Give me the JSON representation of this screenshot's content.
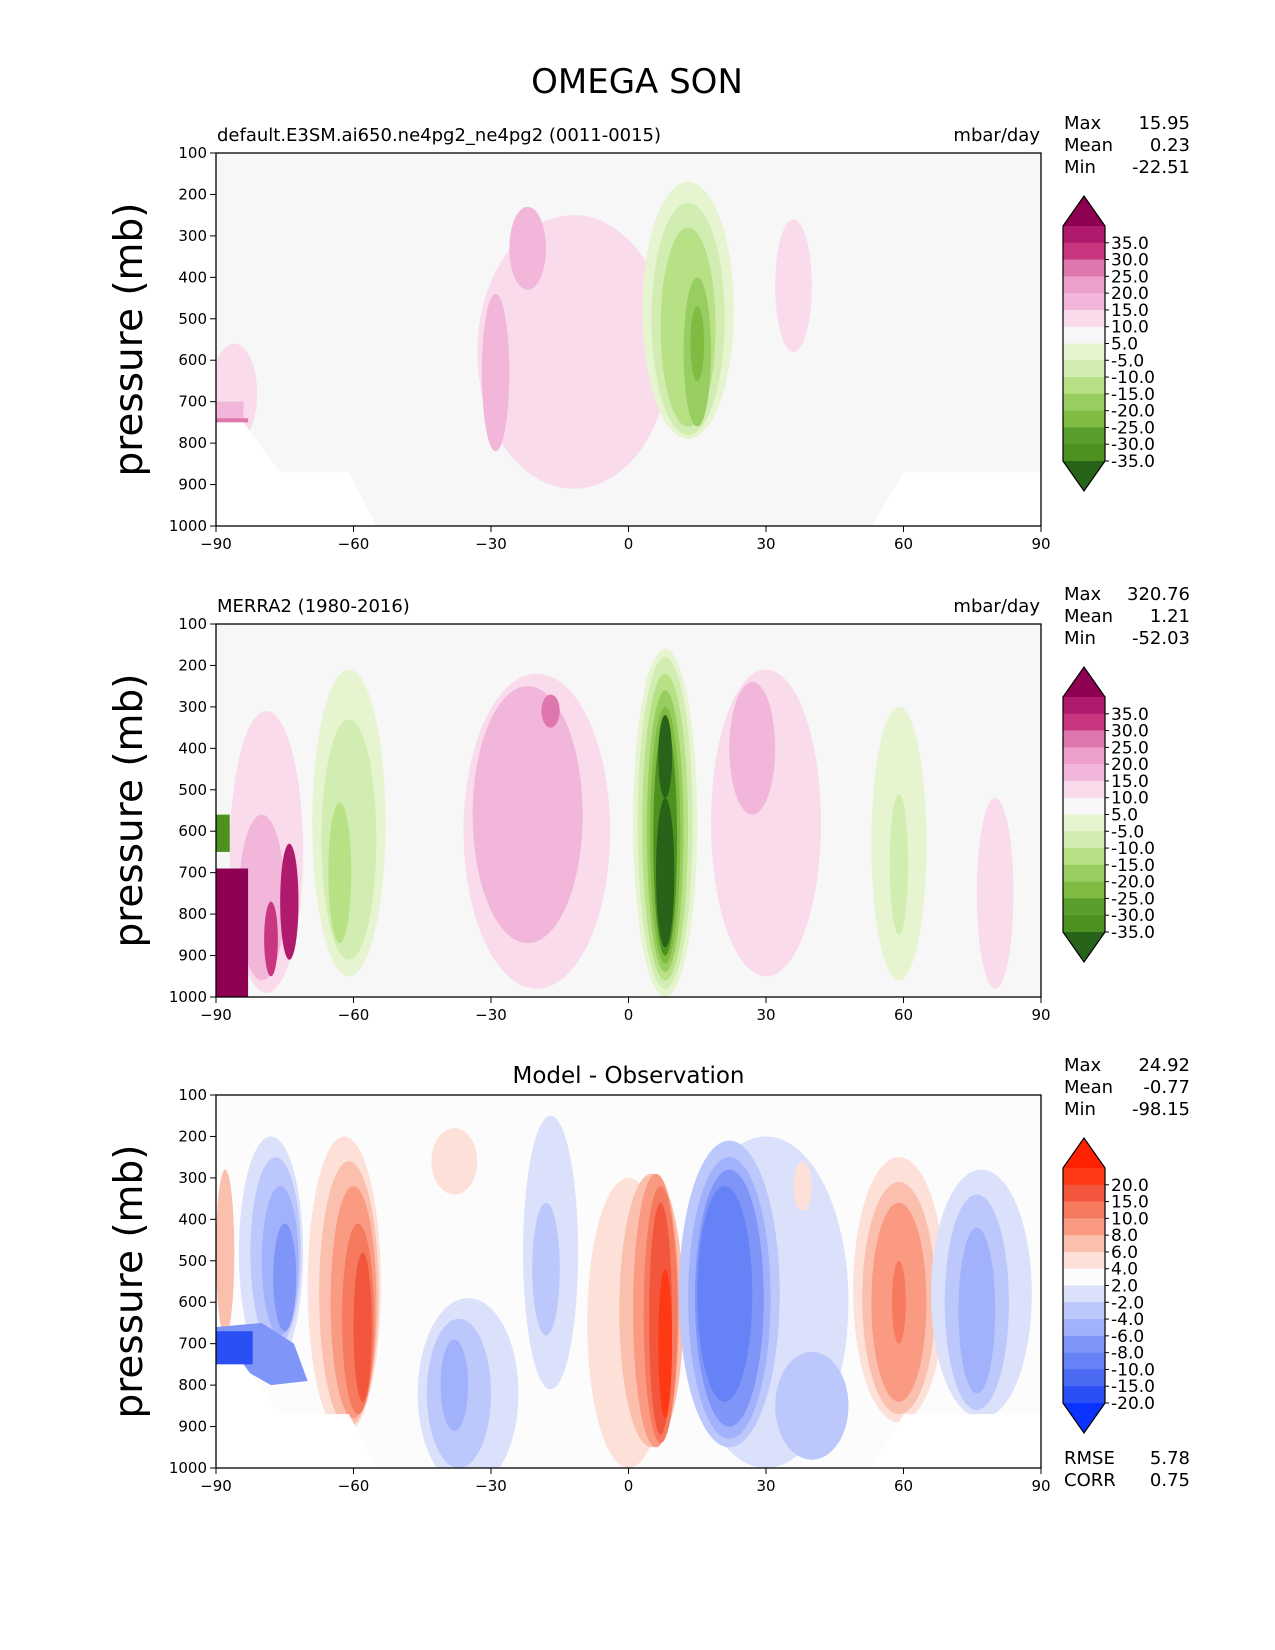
{
  "figure_title": "OMEGA SON",
  "chart_data": [
    {
      "type": "heatmap",
      "panel": "test",
      "title_left": "default.E3SM.ai650.ne4pg2_ne4pg2 (0011-0015)",
      "title_center": "",
      "units": "mbar/day",
      "xlabel": "",
      "ylabel": "pressure (mb)",
      "xlim": [
        -90,
        90
      ],
      "ylim": [
        1000,
        100
      ],
      "x_ticks": [
        "−90",
        "−60",
        "−30",
        "0",
        "30",
        "60",
        "90"
      ],
      "y_ticks": [
        "100",
        "200",
        "300",
        "400",
        "500",
        "600",
        "700",
        "800",
        "900",
        "1000"
      ],
      "stats": [
        {
          "label": "Max",
          "value": "15.95"
        },
        {
          "label": "Mean",
          "value": "0.23"
        },
        {
          "label": "Min",
          "value": "-22.51"
        }
      ],
      "colorbar": {
        "labels": [
          "35.0",
          "30.0",
          "25.0",
          "20.0",
          "15.0",
          "10.0",
          "5.0",
          "-5.0",
          "-10.0",
          "-15.0",
          "-20.0",
          "-25.0",
          "-30.0",
          "-35.0"
        ],
        "colors": [
          "#8e0152",
          "#b01a6c",
          "#c7367f",
          "#de77ae",
          "#ec9fc9",
          "#f1b6da",
          "#f9dbec",
          "#f7f7f7",
          "#e6f5d0",
          "#d2edb1",
          "#b8e186",
          "#98cd61",
          "#7fbc41",
          "#5a9e2e",
          "#4d9221",
          "#276419"
        ]
      },
      "regions": [
        {
          "kind": "blob",
          "lon": -12,
          "p": 580,
          "wlon": 21,
          "hp": 330,
          "color": "#f9dbec"
        },
        {
          "kind": "blob",
          "lon": -22,
          "p": 330,
          "wlon": 4,
          "hp": 100,
          "color": "#f1b6da"
        },
        {
          "kind": "blob",
          "lon": -29,
          "p": 630,
          "wlon": 3,
          "hp": 190,
          "color": "#f1b6da"
        },
        {
          "kind": "blob",
          "lon": 13,
          "p": 480,
          "wlon": 10,
          "hp": 310,
          "color": "#e6f5d0"
        },
        {
          "kind": "blob",
          "lon": 13,
          "p": 500,
          "wlon": 8,
          "hp": 280,
          "color": "#d2edb1"
        },
        {
          "kind": "blob",
          "lon": 13,
          "p": 520,
          "wlon": 6,
          "hp": 240,
          "color": "#b8e186"
        },
        {
          "kind": "blob",
          "lon": 15,
          "p": 580,
          "wlon": 3,
          "hp": 180,
          "color": "#98cd61"
        },
        {
          "kind": "blob",
          "lon": 15,
          "p": 560,
          "wlon": 1.5,
          "hp": 90,
          "color": "#7fbc41"
        },
        {
          "kind": "blob",
          "lon": 36,
          "p": 420,
          "wlon": 4,
          "hp": 160,
          "color": "#f9dbec"
        },
        {
          "kind": "blob",
          "lon": -86,
          "p": 680,
          "wlon": 5,
          "hp": 120,
          "color": "#f9dbec"
        },
        {
          "kind": "rect",
          "lon0": -90,
          "lon1": -84,
          "p0": 700,
          "p1": 750,
          "color": "#f1b6da"
        },
        {
          "kind": "rect",
          "lon0": -90,
          "lon1": -83,
          "p0": 740,
          "p1": 750,
          "color": "#de77ae"
        },
        {
          "kind": "blank",
          "points": [
            [
              -90,
              750
            ],
            [
              -84,
              750
            ],
            [
              -76,
              870
            ],
            [
              -61,
              870
            ],
            [
              -55,
              1000
            ],
            [
              -90,
              1000
            ]
          ]
        },
        {
          "kind": "blank",
          "points": [
            [
              53,
              1000
            ],
            [
              60,
              870
            ],
            [
              90,
              870
            ],
            [
              90,
              1000
            ]
          ]
        }
      ]
    },
    {
      "type": "heatmap",
      "panel": "reference",
      "title_left": "MERRA2 (1980-2016)",
      "title_center": "",
      "units": "mbar/day",
      "xlabel": "",
      "ylabel": "pressure (mb)",
      "xlim": [
        -90,
        90
      ],
      "ylim": [
        1000,
        100
      ],
      "x_ticks": [
        "−90",
        "−60",
        "−30",
        "0",
        "30",
        "60",
        "90"
      ],
      "y_ticks": [
        "100",
        "200",
        "300",
        "400",
        "500",
        "600",
        "700",
        "800",
        "900",
        "1000"
      ],
      "stats": [
        {
          "label": "Max",
          "value": "320.76"
        },
        {
          "label": "Mean",
          "value": "1.21"
        },
        {
          "label": "Min",
          "value": "-52.03"
        }
      ],
      "colorbar": {
        "labels": [
          "35.0",
          "30.0",
          "25.0",
          "20.0",
          "15.0",
          "10.0",
          "5.0",
          "-5.0",
          "-10.0",
          "-15.0",
          "-20.0",
          "-25.0",
          "-30.0",
          "-35.0"
        ],
        "colors": [
          "#8e0152",
          "#b01a6c",
          "#c7367f",
          "#de77ae",
          "#ec9fc9",
          "#f1b6da",
          "#f9dbec",
          "#f7f7f7",
          "#e6f5d0",
          "#d2edb1",
          "#b8e186",
          "#98cd61",
          "#7fbc41",
          "#5a9e2e",
          "#4d9221",
          "#276419"
        ]
      },
      "regions": [
        {
          "kind": "blob",
          "lon": -61,
          "p": 580,
          "wlon": 8,
          "hp": 370,
          "color": "#e6f5d0"
        },
        {
          "kind": "blob",
          "lon": -61,
          "p": 620,
          "wlon": 6,
          "hp": 290,
          "color": "#d2edb1"
        },
        {
          "kind": "blob",
          "lon": -63,
          "p": 700,
          "wlon": 2.5,
          "hp": 170,
          "color": "#b8e186"
        },
        {
          "kind": "blob",
          "lon": -20,
          "p": 600,
          "wlon": 16,
          "hp": 380,
          "color": "#f9dbec"
        },
        {
          "kind": "blob",
          "lon": -22,
          "p": 560,
          "wlon": 12,
          "hp": 310,
          "color": "#f1b6da"
        },
        {
          "kind": "blob",
          "lon": -17,
          "p": 310,
          "wlon": 2,
          "hp": 40,
          "color": "#de77ae"
        },
        {
          "kind": "blob",
          "lon": 5,
          "p": 560,
          "wlon": 3,
          "hp": 350,
          "color": "#e6f5d0"
        },
        {
          "kind": "blob",
          "lon": 8,
          "p": 580,
          "wlon": 7,
          "hp": 420,
          "color": "#e6f5d0"
        },
        {
          "kind": "blob",
          "lon": 8,
          "p": 580,
          "wlon": 6,
          "hp": 400,
          "color": "#d2edb1"
        },
        {
          "kind": "blob",
          "lon": 8,
          "p": 590,
          "wlon": 5,
          "hp": 370,
          "color": "#b8e186"
        },
        {
          "kind": "blob",
          "lon": 8,
          "p": 600,
          "wlon": 4,
          "hp": 340,
          "color": "#98cd61"
        },
        {
          "kind": "blob",
          "lon": 8,
          "p": 610,
          "wlon": 3.3,
          "hp": 310,
          "color": "#7fbc41"
        },
        {
          "kind": "blob",
          "lon": 8,
          "p": 620,
          "wlon": 2.6,
          "hp": 280,
          "color": "#4d9221"
        },
        {
          "kind": "blob",
          "lon": 8,
          "p": 700,
          "wlon": 2,
          "hp": 180,
          "color": "#276419"
        },
        {
          "kind": "blob",
          "lon": 8,
          "p": 420,
          "wlon": 1.5,
          "hp": 100,
          "color": "#276419"
        },
        {
          "kind": "blob",
          "lon": 30,
          "p": 580,
          "wlon": 12,
          "hp": 370,
          "color": "#f9dbec"
        },
        {
          "kind": "blob",
          "lon": 27,
          "p": 400,
          "wlon": 5,
          "hp": 160,
          "color": "#f1b6da"
        },
        {
          "kind": "blob",
          "lon": 59,
          "p": 630,
          "wlon": 6,
          "hp": 330,
          "color": "#e6f5d0"
        },
        {
          "kind": "blob",
          "lon": 59,
          "p": 680,
          "wlon": 2,
          "hp": 170,
          "color": "#d2edb1"
        },
        {
          "kind": "blob",
          "lon": 80,
          "p": 750,
          "wlon": 4,
          "hp": 230,
          "color": "#f9dbec"
        },
        {
          "kind": "blob",
          "lon": -79,
          "p": 650,
          "wlon": 8,
          "hp": 340,
          "color": "#f9dbec"
        },
        {
          "kind": "blob",
          "lon": -80,
          "p": 760,
          "wlon": 5,
          "hp": 200,
          "color": "#f1b6da"
        },
        {
          "kind": "rect",
          "lon0": -90,
          "lon1": -83,
          "p0": 690,
          "p1": 1000,
          "color": "#8e0152"
        },
        {
          "kind": "rect",
          "lon0": -90,
          "lon1": -87,
          "p0": 560,
          "p1": 650,
          "color": "#4d9221"
        },
        {
          "kind": "blob",
          "lon": -74,
          "p": 770,
          "wlon": 2,
          "hp": 140,
          "color": "#b01a6c"
        },
        {
          "kind": "blob",
          "lon": -78,
          "p": 860,
          "wlon": 1.5,
          "hp": 90,
          "color": "#c7367f"
        }
      ]
    },
    {
      "type": "heatmap",
      "panel": "difference",
      "title_left": "",
      "title_center": "Model - Observation",
      "units": "",
      "xlabel": "",
      "ylabel": "pressure (mb)",
      "xlim": [
        -90,
        90
      ],
      "ylim": [
        1000,
        100
      ],
      "x_ticks": [
        "−90",
        "−60",
        "−30",
        "0",
        "30",
        "60",
        "90"
      ],
      "y_ticks": [
        "100",
        "200",
        "300",
        "400",
        "500",
        "600",
        "700",
        "800",
        "900",
        "1000"
      ],
      "stats": [
        {
          "label": "Max",
          "value": "24.92"
        },
        {
          "label": "Mean",
          "value": "-0.77"
        },
        {
          "label": "Min",
          "value": "-98.15"
        }
      ],
      "metrics": [
        {
          "label": "RMSE",
          "value": "5.78"
        },
        {
          "label": "CORR",
          "value": "0.75"
        }
      ],
      "colorbar": {
        "labels": [
          "20.0",
          "15.0",
          "10.0",
          "8.0",
          "6.0",
          "4.0",
          "2.0",
          "-2.0",
          "-4.0",
          "-6.0",
          "-8.0",
          "-10.0",
          "-15.0",
          "-20.0"
        ],
        "colors": [
          "#ff2200",
          "#fe3914",
          "#f2563d",
          "#f67a5d",
          "#fa9a82",
          "#fbbfae",
          "#fde0d7",
          "#fcfcfc",
          "#dbe1fb",
          "#bcc7fb",
          "#a1b1fb",
          "#7f95f7",
          "#6582f6",
          "#4a6bf2",
          "#2a4ff5",
          "#0a33ff"
        ]
      },
      "regions": [
        {
          "kind": "blob",
          "lon": -62,
          "p": 560,
          "wlon": 8,
          "hp": 360,
          "color": "#fde0d7"
        },
        {
          "kind": "blob",
          "lon": -61,
          "p": 580,
          "wlon": 6.5,
          "hp": 320,
          "color": "#fbbfae"
        },
        {
          "kind": "blob",
          "lon": -60,
          "p": 600,
          "wlon": 5,
          "hp": 280,
          "color": "#fa9a82"
        },
        {
          "kind": "blob",
          "lon": -59,
          "p": 640,
          "wlon": 3.5,
          "hp": 230,
          "color": "#f67a5d"
        },
        {
          "kind": "blob",
          "lon": -58,
          "p": 660,
          "wlon": 2,
          "hp": 180,
          "color": "#f2563d"
        },
        {
          "kind": "blob",
          "lon": -78,
          "p": 480,
          "wlon": 7,
          "hp": 280,
          "color": "#dbe1fb"
        },
        {
          "kind": "blob",
          "lon": -77,
          "p": 480,
          "wlon": 5.5,
          "hp": 230,
          "color": "#bcc7fb"
        },
        {
          "kind": "blob",
          "lon": -76,
          "p": 500,
          "wlon": 4,
          "hp": 180,
          "color": "#a1b1fb"
        },
        {
          "kind": "blob",
          "lon": -75,
          "p": 540,
          "wlon": 2.5,
          "hp": 130,
          "color": "#7f95f7"
        },
        {
          "kind": "blob",
          "lon": -88,
          "p": 480,
          "wlon": 2,
          "hp": 200,
          "color": "#fbbfae"
        },
        {
          "kind": "blob",
          "lon": -35,
          "p": 820,
          "wlon": 11,
          "hp": 230,
          "color": "#dbe1fb"
        },
        {
          "kind": "blob",
          "lon": -37,
          "p": 820,
          "wlon": 7,
          "hp": 180,
          "color": "#bcc7fb"
        },
        {
          "kind": "blob",
          "lon": -38,
          "p": 800,
          "wlon": 3,
          "hp": 110,
          "color": "#a1b1fb"
        },
        {
          "kind": "blob",
          "lon": -17,
          "p": 480,
          "wlon": 6,
          "hp": 330,
          "color": "#dbe1fb"
        },
        {
          "kind": "blob",
          "lon": -18,
          "p": 520,
          "wlon": 3,
          "hp": 160,
          "color": "#bcc7fb"
        },
        {
          "kind": "blob",
          "lon": -38,
          "p": 260,
          "wlon": 5,
          "hp": 80,
          "color": "#fde0d7"
        },
        {
          "kind": "blob",
          "lon": 0,
          "p": 650,
          "wlon": 9,
          "hp": 350,
          "color": "#fde0d7"
        },
        {
          "kind": "blob",
          "lon": 5,
          "p": 620,
          "wlon": 7,
          "hp": 330,
          "color": "#fbbfae"
        },
        {
          "kind": "blob",
          "lon": 6,
          "p": 620,
          "wlon": 5,
          "hp": 330,
          "color": "#fa9a82"
        },
        {
          "kind": "blob",
          "lon": 7,
          "p": 630,
          "wlon": 3.7,
          "hp": 310,
          "color": "#f67a5d"
        },
        {
          "kind": "blob",
          "lon": 7,
          "p": 640,
          "wlon": 2.5,
          "hp": 280,
          "color": "#f2563d"
        },
        {
          "kind": "blob",
          "lon": 8,
          "p": 700,
          "wlon": 1.5,
          "hp": 180,
          "color": "#fe3914"
        },
        {
          "kind": "blob",
          "lon": 30,
          "p": 600,
          "wlon": 18,
          "hp": 400,
          "color": "#dbe1fb"
        },
        {
          "kind": "blob",
          "lon": 22,
          "p": 580,
          "wlon": 11,
          "hp": 370,
          "color": "#bcc7fb"
        },
        {
          "kind": "blob",
          "lon": 22,
          "p": 590,
          "wlon": 9,
          "hp": 340,
          "color": "#a1b1fb"
        },
        {
          "kind": "blob",
          "lon": 22,
          "p": 590,
          "wlon": 7.5,
          "hp": 310,
          "color": "#7f95f7"
        },
        {
          "kind": "blob",
          "lon": 21,
          "p": 580,
          "wlon": 6,
          "hp": 260,
          "color": "#6582f6"
        },
        {
          "kind": "blob",
          "lon": 40,
          "p": 850,
          "wlon": 8,
          "hp": 130,
          "color": "#bcc7fb"
        },
        {
          "kind": "blob",
          "lon": 59,
          "p": 570,
          "wlon": 10,
          "hp": 320,
          "color": "#fde0d7"
        },
        {
          "kind": "blob",
          "lon": 59,
          "p": 590,
          "wlon": 8,
          "hp": 280,
          "color": "#fbbfae"
        },
        {
          "kind": "blob",
          "lon": 59,
          "p": 600,
          "wlon": 6,
          "hp": 240,
          "color": "#fa9a82"
        },
        {
          "kind": "blob",
          "lon": 59,
          "p": 600,
          "wlon": 1.5,
          "hp": 100,
          "color": "#f67a5d"
        },
        {
          "kind": "blob",
          "lon": 77,
          "p": 580,
          "wlon": 11,
          "hp": 300,
          "color": "#dbe1fb"
        },
        {
          "kind": "blob",
          "lon": 76,
          "p": 600,
          "wlon": 7,
          "hp": 260,
          "color": "#bcc7fb"
        },
        {
          "kind": "blob",
          "lon": 76,
          "p": 620,
          "wlon": 4,
          "hp": 200,
          "color": "#a1b1fb"
        },
        {
          "kind": "blob",
          "lon": 38,
          "p": 320,
          "wlon": 2,
          "hp": 60,
          "color": "#fde0d7"
        },
        {
          "kind": "poly",
          "points": [
            [
              -90,
              660
            ],
            [
              -80,
              650
            ],
            [
              -73,
              700
            ],
            [
              -70,
              790
            ],
            [
              -78,
              800
            ],
            [
              -86,
              750
            ],
            [
              -90,
              750
            ]
          ],
          "color": "#7f95f7"
        },
        {
          "kind": "rect",
          "lon0": -90,
          "lon1": -82,
          "p0": 670,
          "p1": 750,
          "color": "#2a4ff5"
        },
        {
          "kind": "blank",
          "points": [
            [
              -90,
              750
            ],
            [
              -84,
              750
            ],
            [
              -76,
              870
            ],
            [
              -61,
              870
            ],
            [
              -55,
              1000
            ],
            [
              -90,
              1000
            ]
          ]
        },
        {
          "kind": "blank",
          "points": [
            [
              53,
              1000
            ],
            [
              60,
              870
            ],
            [
              90,
              870
            ],
            [
              90,
              1000
            ]
          ]
        }
      ]
    }
  ]
}
